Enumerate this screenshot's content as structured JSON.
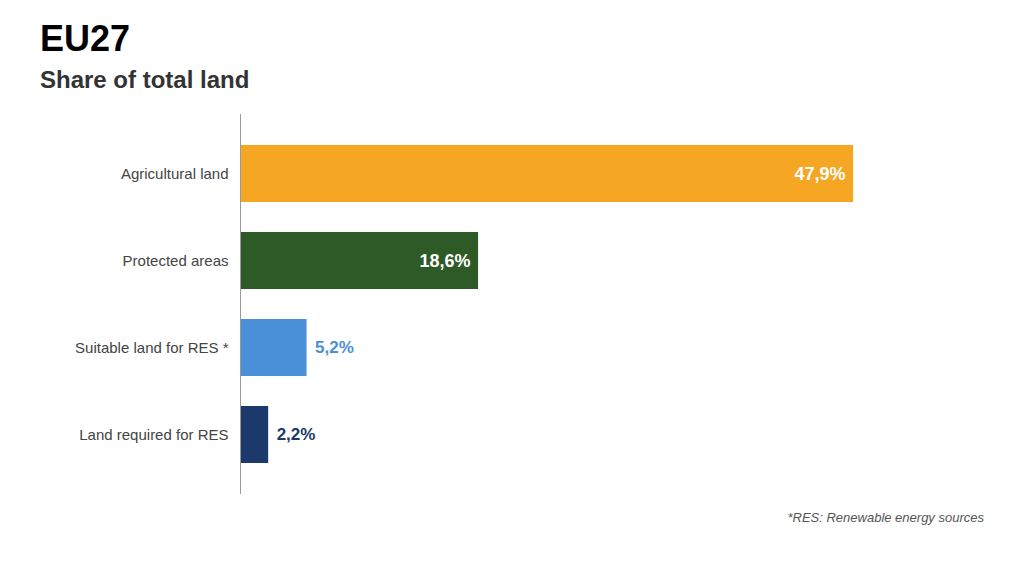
{
  "chart_data": {
    "type": "bar",
    "orientation": "horizontal",
    "title": "EU27",
    "subtitle": "Share of total land",
    "annotations": [
      "*RES: Renewable energy sources"
    ],
    "categories": [
      "Agricultural land",
      "Protected areas",
      "Suitable land for RES *",
      "Land required for RES"
    ],
    "values": [
      47.9,
      18.6,
      5.2,
      2.2
    ],
    "value_labels": [
      "47,9%",
      "18,6%",
      "5,2%",
      "2,2%"
    ],
    "colors": [
      "#F5A623",
      "#2D5A27",
      "#4A90D9",
      "#1B3A6B"
    ],
    "xlim": [
      0,
      55
    ],
    "data_labels": true,
    "tick_labels": "y",
    "grid": false
  }
}
